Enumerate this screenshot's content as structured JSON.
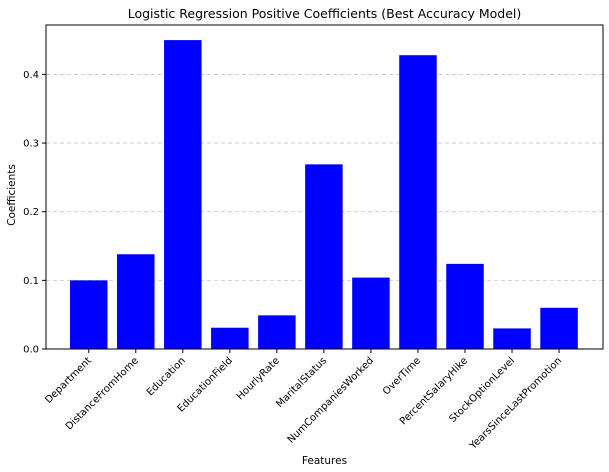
{
  "chart_data": {
    "type": "bar",
    "title": "Logistic Regression Positive Coefficients (Best Accuracy Model)",
    "xlabel": "Features",
    "ylabel": "Coefficients",
    "categories": [
      "Department",
      "DistanceFromHome",
      "Education",
      "EducationField",
      "HourlyRate",
      "MaritalStatus",
      "NumCompaniesWorked",
      "OverTime",
      "PercentSalaryHike",
      "StockOptionLevel",
      "YearsSinceLastPromotion"
    ],
    "values": [
      0.1,
      0.138,
      0.45,
      0.031,
      0.049,
      0.269,
      0.104,
      0.428,
      0.124,
      0.03,
      0.06
    ],
    "ylim": [
      0,
      0.472
    ],
    "yticks": [
      0.0,
      0.1,
      0.2,
      0.3,
      0.4
    ],
    "ytick_labels": [
      "0.0",
      "0.1",
      "0.2",
      "0.3",
      "0.4"
    ],
    "grid": "y-dashed",
    "bar_color": "#0000ff",
    "grid_color": "#c8c8c8"
  }
}
